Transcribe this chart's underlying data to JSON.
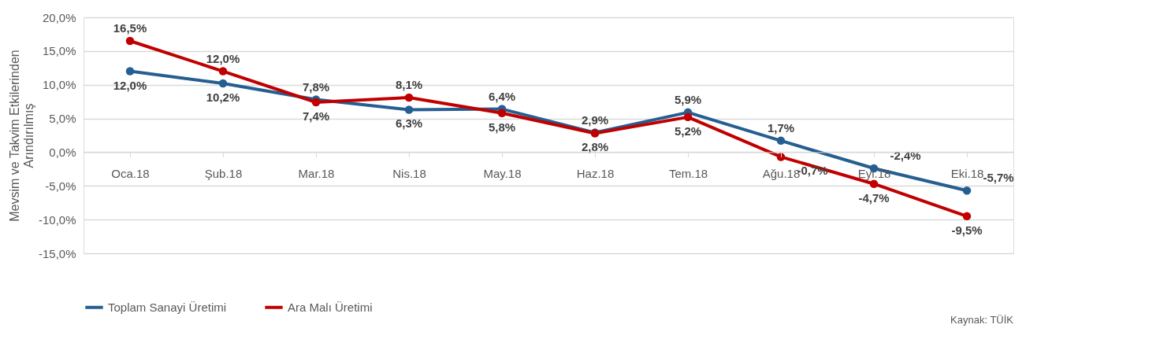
{
  "chart_data": {
    "type": "line",
    "ylabel": "Mevsim ve Takvim Etkilerinden\nArındırılmış",
    "categories": [
      "Oca.18",
      "Şub.18",
      "Mar.18",
      "Nis.18",
      "May.18",
      "Haz.18",
      "Tem.18",
      "Ağu.18",
      "Eyl.18",
      "Eki.18"
    ],
    "series": [
      {
        "name": "Toplam Sanayi Üretimi",
        "color": "#255e91",
        "values": [
          12.0,
          10.2,
          7.8,
          6.3,
          6.4,
          2.9,
          5.9,
          1.7,
          -2.4,
          -5.7
        ],
        "value_labels": [
          "12,0%",
          "10,2%",
          "7,8%",
          "6,3%",
          "6,4%",
          "2,9%",
          "5,9%",
          "1,7%",
          "-2,4%",
          "-5,7%"
        ]
      },
      {
        "name": "Ara Malı Üretimi",
        "color": "#c00000",
        "values": [
          16.5,
          12.0,
          7.4,
          8.1,
          5.8,
          2.8,
          5.2,
          -0.7,
          -4.7,
          -9.5
        ],
        "value_labels": [
          "16,5%",
          "12,0%",
          "7,4%",
          "8,1%",
          "5,8%",
          "2,8%",
          "5,2%",
          "-0,7%",
          "-4,7%",
          "-9,5%"
        ]
      }
    ],
    "ylim": [
      -15,
      20
    ],
    "yticks": [
      {
        "value": -15,
        "label": "-15,0%"
      },
      {
        "value": -10,
        "label": "-10,0%"
      },
      {
        "value": -5,
        "label": "-5,0%"
      },
      {
        "value": 0,
        "label": "0,0%"
      },
      {
        "value": 5,
        "label": "5,0%"
      },
      {
        "value": 10,
        "label": "10,0%"
      },
      {
        "value": 15,
        "label": "15,0%"
      },
      {
        "value": 20,
        "label": "20,0%"
      }
    ],
    "grid": "y",
    "legend": "bottom",
    "marker": "circle",
    "line_style": "solid",
    "annotations": [
      "Kaynak: TÜİK"
    ]
  }
}
